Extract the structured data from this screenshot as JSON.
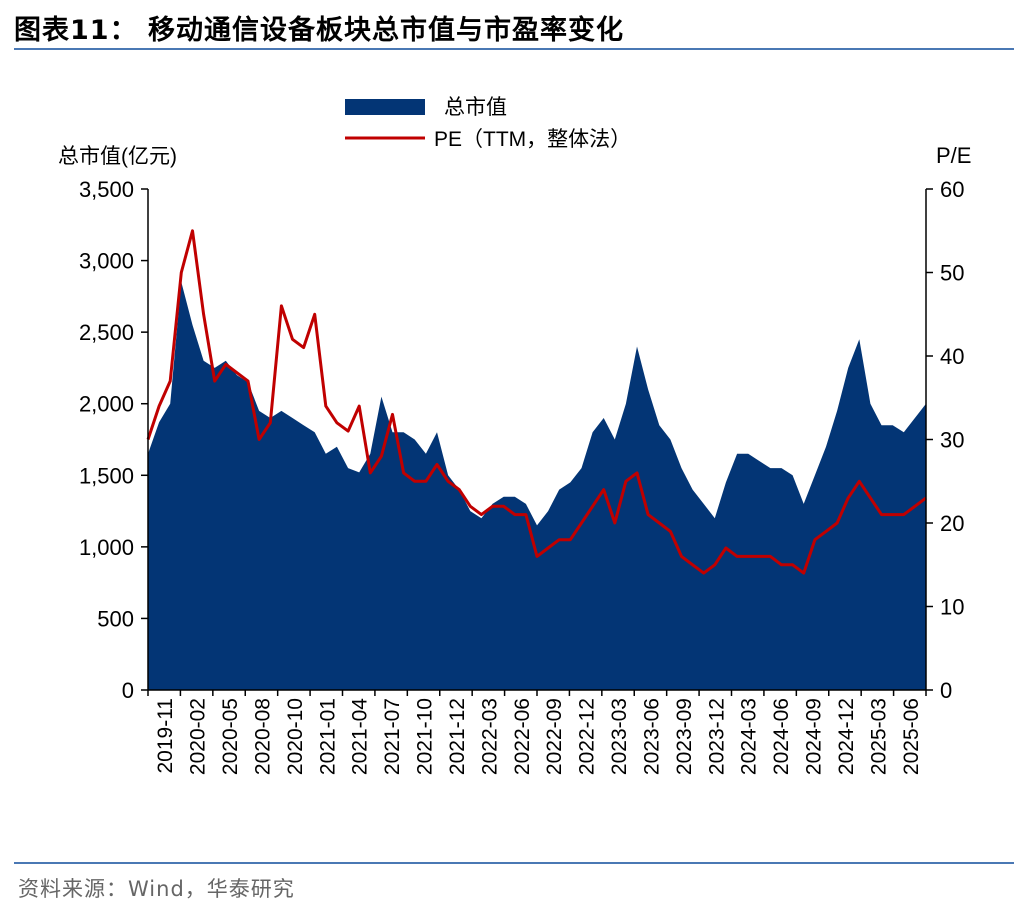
{
  "header": {
    "title": "图表11：  移动通信设备板块总市值与市盈率变化"
  },
  "footer": {
    "source": "资料来源：Wind，华泰研究"
  },
  "colors": {
    "area": "#033575",
    "line": "#c00000",
    "rule": "#4a78b4"
  },
  "chart_data": {
    "type": "area",
    "legend": [
      "总市值",
      "PE（TTM，整体法）"
    ],
    "legend_position": "top-center",
    "ylabel_left": "总市值(亿元)",
    "ylabel_right": "P/E",
    "ylim_left": [
      0,
      3500
    ],
    "ylim_right": [
      0,
      60
    ],
    "yticks_left": [
      "0",
      "500",
      "1,000",
      "1,500",
      "2,000",
      "2,500",
      "3,000",
      "3,500"
    ],
    "yticks_right": [
      "0",
      "10",
      "20",
      "30",
      "40",
      "50",
      "60"
    ],
    "x_tick_labels": [
      "2019-11",
      "2020-02",
      "2020-05",
      "2020-08",
      "2020-10",
      "2021-01",
      "2021-04",
      "2021-07",
      "2021-10",
      "2021-12",
      "2022-03",
      "2022-06",
      "2022-09",
      "2022-12",
      "2023-03",
      "2023-06",
      "2023-09",
      "2023-12",
      "2024-03",
      "2024-06",
      "2024-09",
      "2024-12",
      "2025-03",
      "2025-06"
    ],
    "grid": false,
    "series": [
      {
        "name": "总市值",
        "axis": "left",
        "x": [
          "2019-11",
          "2019-12",
          "2020-01",
          "2020-02",
          "2020-02",
          "2020-03",
          "2020-04",
          "2020-05",
          "2020-06",
          "2020-07",
          "2020-08",
          "2020-09",
          "2020-10",
          "2020-11",
          "2020-12",
          "2021-01",
          "2021-02",
          "2021-03",
          "2021-04",
          "2021-05",
          "2021-06",
          "2021-07",
          "2021-08",
          "2021-09",
          "2021-10",
          "2021-11",
          "2021-12",
          "2022-01",
          "2022-02",
          "2022-03",
          "2022-04",
          "2022-05",
          "2022-06",
          "2022-07",
          "2022-08",
          "2022-09",
          "2022-10",
          "2022-11",
          "2022-12",
          "2023-01",
          "2023-02",
          "2023-03",
          "2023-04",
          "2023-05",
          "2023-06",
          "2023-07",
          "2023-08",
          "2023-09",
          "2023-10",
          "2023-11",
          "2023-12",
          "2024-01",
          "2024-02",
          "2024-03",
          "2024-04",
          "2024-05",
          "2024-06",
          "2024-07",
          "2024-08",
          "2024-09",
          "2024-10",
          "2024-11",
          "2024-12",
          "2025-01",
          "2025-02",
          "2025-03",
          "2025-04",
          "2025-05",
          "2025-06",
          "2025-07",
          "2025-08"
        ],
        "values": [
          1650,
          1870,
          2000,
          2850,
          2550,
          2300,
          2250,
          2300,
          2200,
          2150,
          1950,
          1900,
          1950,
          1900,
          1850,
          1800,
          1650,
          1700,
          1550,
          1520,
          1650,
          2050,
          1800,
          1800,
          1750,
          1650,
          1800,
          1500,
          1400,
          1250,
          1200,
          1300,
          1350,
          1350,
          1300,
          1150,
          1250,
          1400,
          1450,
          1550,
          1800,
          1900,
          1750,
          2000,
          2400,
          2100,
          1850,
          1750,
          1550,
          1400,
          1300,
          1200,
          1450,
          1650,
          1650,
          1600,
          1550,
          1550,
          1500,
          1300,
          1500,
          1700,
          1950,
          2250,
          2450,
          2000,
          1850,
          1850,
          1800,
          1900,
          2000
        ]
      },
      {
        "name": "PE（TTM，整体法）",
        "axis": "right",
        "x": [
          "2019-11",
          "2019-12",
          "2020-01",
          "2020-02",
          "2020-02",
          "2020-03",
          "2020-04",
          "2020-05",
          "2020-06",
          "2020-07",
          "2020-08",
          "2020-09",
          "2020-10",
          "2020-11",
          "2020-12",
          "2021-01",
          "2021-02",
          "2021-03",
          "2021-04",
          "2021-05",
          "2021-06",
          "2021-07",
          "2021-08",
          "2021-09",
          "2021-10",
          "2021-11",
          "2021-12",
          "2022-01",
          "2022-02",
          "2022-03",
          "2022-04",
          "2022-05",
          "2022-06",
          "2022-07",
          "2022-08",
          "2022-09",
          "2022-10",
          "2022-11",
          "2022-12",
          "2023-01",
          "2023-02",
          "2023-03",
          "2023-04",
          "2023-05",
          "2023-06",
          "2023-07",
          "2023-08",
          "2023-09",
          "2023-10",
          "2023-11",
          "2023-12",
          "2024-01",
          "2024-02",
          "2024-03",
          "2024-04",
          "2024-05",
          "2024-06",
          "2024-07",
          "2024-08",
          "2024-09",
          "2024-10",
          "2024-11",
          "2024-12",
          "2025-01",
          "2025-02",
          "2025-03",
          "2025-04",
          "2025-05",
          "2025-06",
          "2025-07",
          "2025-08"
        ],
        "values": [
          30,
          34,
          37,
          50,
          55,
          45,
          37,
          39,
          38,
          37,
          30,
          32,
          46,
          42,
          41,
          45,
          34,
          32,
          31,
          34,
          26,
          28,
          33,
          26,
          25,
          25,
          27,
          25,
          24,
          22,
          21,
          22,
          22,
          21,
          21,
          16,
          17,
          18,
          18,
          20,
          22,
          24,
          20,
          25,
          26,
          21,
          20,
          19,
          16,
          15,
          14,
          15,
          17,
          16,
          16,
          16,
          16,
          15,
          15,
          14,
          18,
          19,
          20,
          23,
          25,
          23,
          21,
          21,
          21,
          22,
          23
        ]
      }
    ]
  }
}
